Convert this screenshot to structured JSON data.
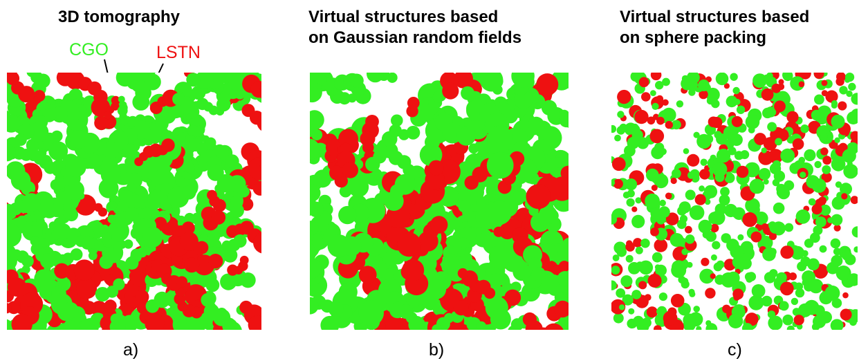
{
  "panels": [
    {
      "id": "a",
      "title": "3D tomography",
      "label": "a)"
    },
    {
      "id": "b",
      "title": "Virtual structures based\non Gaussian random fields",
      "label": "b)"
    },
    {
      "id": "c",
      "title": "Virtual structures based\non sphere packing",
      "label": "c)"
    }
  ],
  "annotations": {
    "cgo": "CGO",
    "lstn": "LSTN"
  },
  "colors": {
    "cgo": "#33ee22",
    "lstn": "#ee1111",
    "pore": "#ffffff"
  }
}
